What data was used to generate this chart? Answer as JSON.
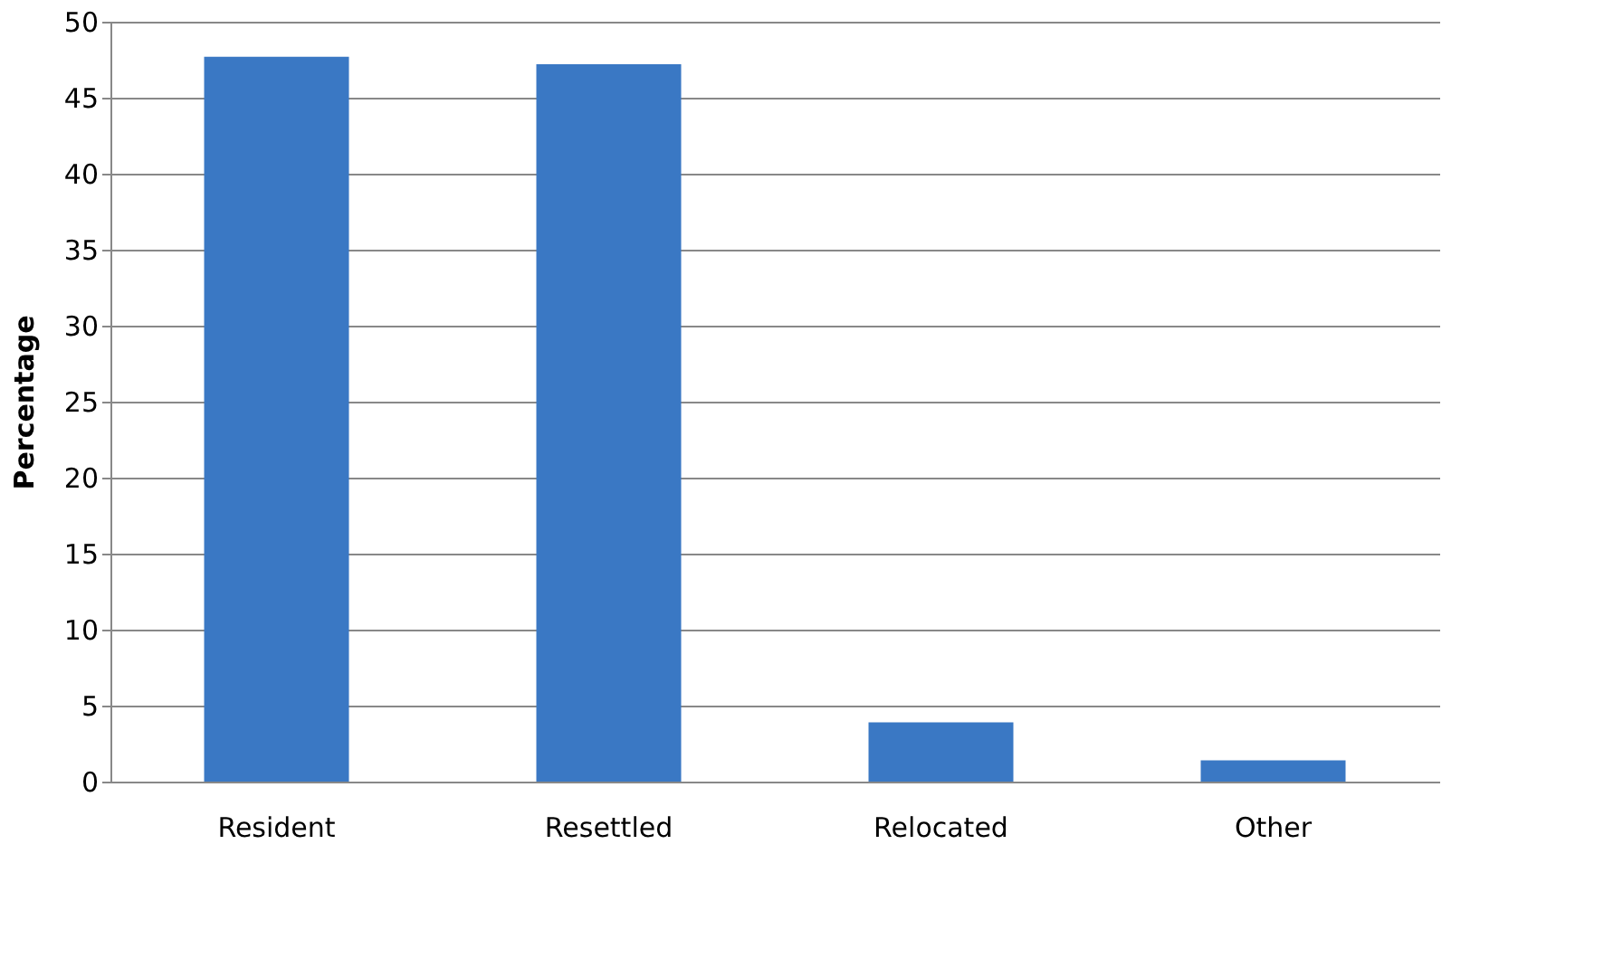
{
  "chart_data": {
    "type": "bar",
    "ylabel": "Percentage",
    "categories": [
      "Resident",
      "Resettled",
      "Relocated",
      "Other"
    ],
    "values": [
      47.7,
      47.2,
      3.9,
      1.4
    ],
    "color": "#3a78c4",
    "ylim": [
      0,
      50
    ],
    "yticks": [
      0,
      5,
      10,
      15,
      20,
      25,
      30,
      35,
      40,
      45,
      50
    ],
    "grid": "y"
  }
}
